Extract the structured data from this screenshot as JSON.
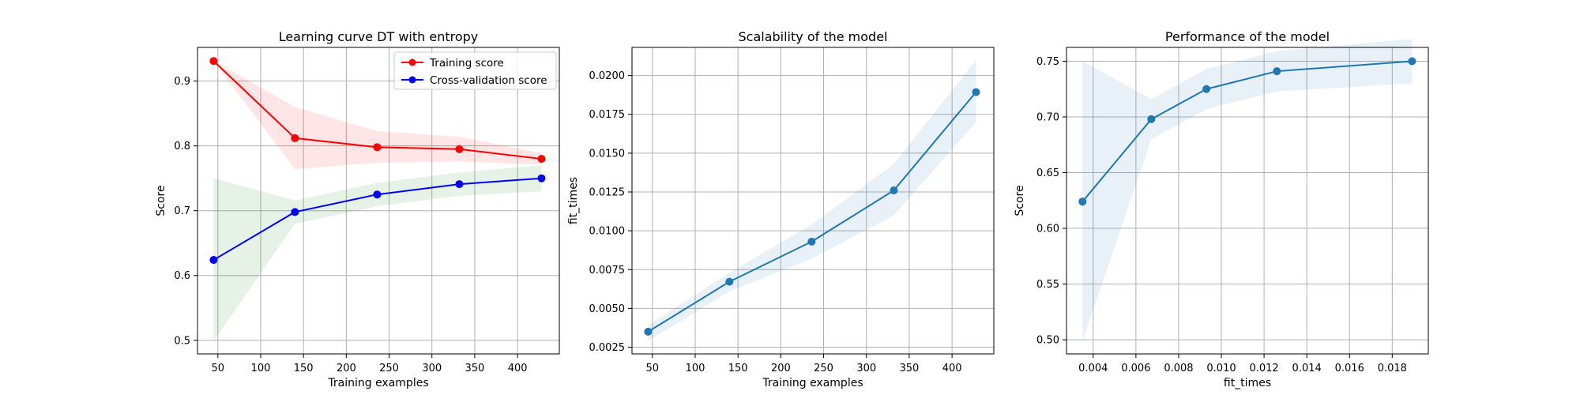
{
  "chart_data": [
    {
      "type": "line",
      "title": "Learning curve DT with entropy",
      "xlabel": "Training examples",
      "ylabel": "Score",
      "xlim": [
        26.2,
        448.8
      ],
      "ylim": [
        0.479,
        0.952
      ],
      "xticks": [
        50,
        100,
        150,
        200,
        250,
        300,
        350,
        400
      ],
      "yticks": [
        0.5,
        0.6,
        0.7,
        0.8,
        0.9
      ],
      "ytick_labels": [
        "0.5",
        "0.6",
        "0.7",
        "0.8",
        "0.9"
      ],
      "grid": true,
      "legend": "upper right",
      "x": [
        45,
        140,
        236,
        332,
        428
      ],
      "series": [
        {
          "name": "Training score",
          "color": "#ff0000",
          "band_color": "#ff0000",
          "values": [
            0.931,
            0.812,
            0.798,
            0.795,
            0.78
          ],
          "lower": [
            0.931,
            0.764,
            0.774,
            0.776,
            0.771
          ],
          "upper": [
            0.931,
            0.86,
            0.823,
            0.814,
            0.789
          ]
        },
        {
          "name": "Cross-validation score",
          "color": "#0000ff",
          "band_color": "#008000",
          "values": [
            0.624,
            0.698,
            0.725,
            0.741,
            0.75
          ],
          "lower": [
            0.499,
            0.68,
            0.707,
            0.723,
            0.73
          ],
          "upper": [
            0.75,
            0.716,
            0.743,
            0.759,
            0.77
          ]
        }
      ]
    },
    {
      "type": "line",
      "title": "Scalability of the model",
      "xlabel": "Training examples",
      "ylabel": "fit_times",
      "xlim": [
        26.2,
        448.8
      ],
      "ylim": [
        0.00207,
        0.02181
      ],
      "xticks": [
        50,
        100,
        150,
        200,
        250,
        300,
        350,
        400
      ],
      "yticks": [
        0.0025,
        0.005,
        0.0075,
        0.01,
        0.0125,
        0.015,
        0.0175,
        0.02
      ],
      "ytick_labels": [
        "0.0025",
        "0.0050",
        "0.0075",
        "0.0100",
        "0.0125",
        "0.0150",
        "0.0175",
        "0.0200"
      ],
      "grid": true,
      "series": [
        {
          "color": "#1f77b4",
          "x": [
            45,
            140,
            236,
            332,
            428
          ],
          "values": [
            0.0035,
            0.00672,
            0.0093,
            0.0126,
            0.01893
          ],
          "lower": [
            0.0029,
            0.0061,
            0.0082,
            0.011,
            0.017
          ],
          "upper": [
            0.0039,
            0.0073,
            0.0104,
            0.0143,
            0.021
          ]
        }
      ]
    },
    {
      "type": "line",
      "title": "Performance of the model",
      "xlabel": "fit_times",
      "ylabel": "Score",
      "xlim": [
        0.00275,
        0.01969
      ],
      "ylim": [
        0.4873,
        0.7624
      ],
      "xticks": [
        0.004,
        0.006,
        0.008,
        0.01,
        0.012,
        0.014,
        0.016,
        0.018
      ],
      "xtick_labels": [
        "0.004",
        "0.006",
        "0.008",
        "0.010",
        "0.012",
        "0.014",
        "0.016",
        "0.018"
      ],
      "yticks": [
        0.5,
        0.55,
        0.6,
        0.65,
        0.7,
        0.75
      ],
      "ytick_labels": [
        "0.50",
        "0.55",
        "0.60",
        "0.65",
        "0.70",
        "0.75"
      ],
      "grid": true,
      "series": [
        {
          "color": "#1f77b4",
          "x": [
            0.0035,
            0.00672,
            0.0093,
            0.0126,
            0.01893
          ],
          "values": [
            0.624,
            0.698,
            0.725,
            0.741,
            0.75
          ],
          "lower": [
            0.499,
            0.68,
            0.707,
            0.723,
            0.73
          ],
          "upper": [
            0.75,
            0.716,
            0.743,
            0.759,
            0.77
          ]
        }
      ]
    }
  ]
}
